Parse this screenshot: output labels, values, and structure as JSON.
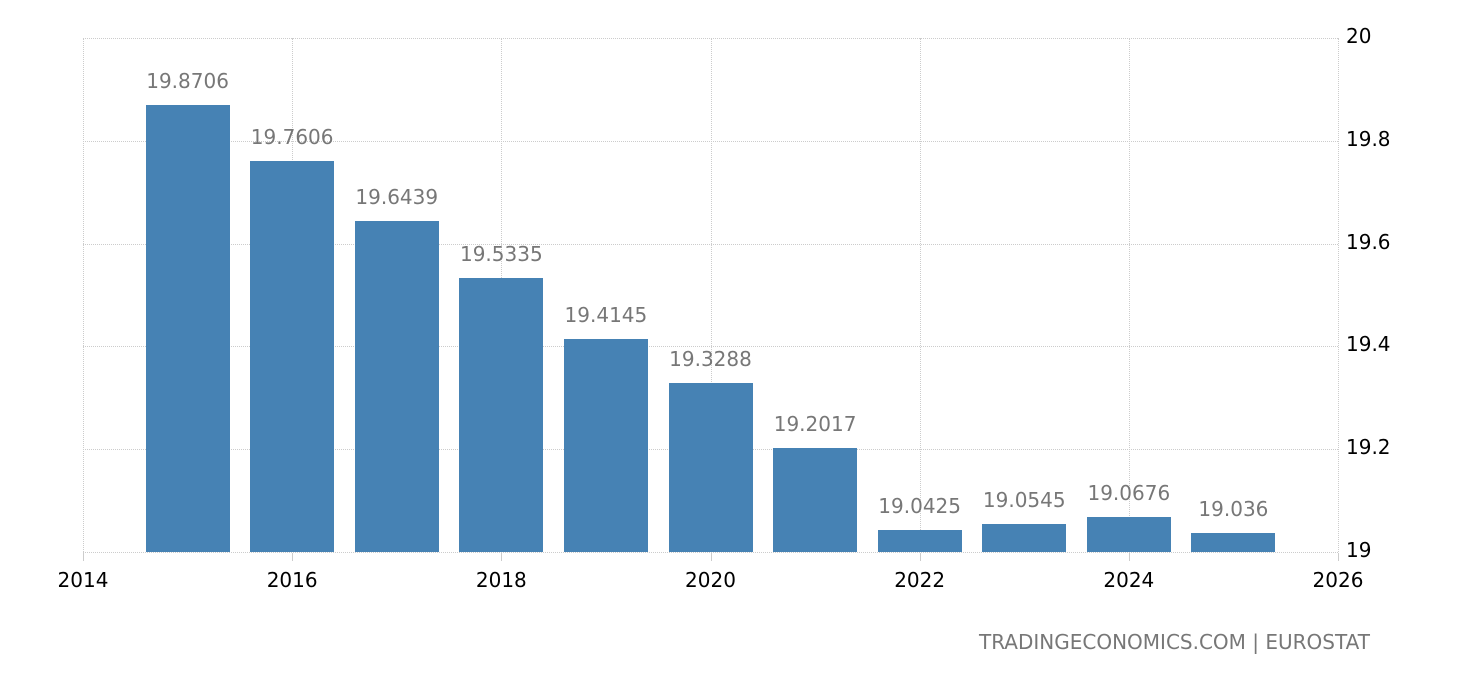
{
  "chart_data": {
    "type": "bar",
    "title": "",
    "xlabel": "",
    "ylabel": "",
    "categories": [
      "2015",
      "2016",
      "2017",
      "2018",
      "2019",
      "2020",
      "2021",
      "2022",
      "2023",
      "2024",
      "2025"
    ],
    "x": [
      2015,
      2016,
      2017,
      2018,
      2019,
      2020,
      2021,
      2022,
      2023,
      2024,
      2025
    ],
    "values": [
      19.8706,
      19.7606,
      19.6439,
      19.5335,
      19.4145,
      19.3288,
      19.2017,
      19.0425,
      19.0545,
      19.0676,
      19.036
    ],
    "value_labels": [
      "19.8706",
      "19.7606",
      "19.6439",
      "19.5335",
      "19.4145",
      "19.3288",
      "19.2017",
      "19.0425",
      "19.0545",
      "19.0676",
      "19.036"
    ],
    "ylim": [
      19,
      20
    ],
    "xlim": [
      2014,
      2026
    ],
    "yticks": [
      "19",
      "19.2",
      "19.4",
      "19.6",
      "19.8",
      "20"
    ],
    "xticks": [
      "2014",
      "2016",
      "2018",
      "2020",
      "2022",
      "2024",
      "2026"
    ],
    "y_axis_position": "right",
    "grid": true,
    "legend": null,
    "bar_color": "#4682b4",
    "label_color": "#777777"
  },
  "source": "TRADINGECONOMICS.COM | EUROSTAT"
}
